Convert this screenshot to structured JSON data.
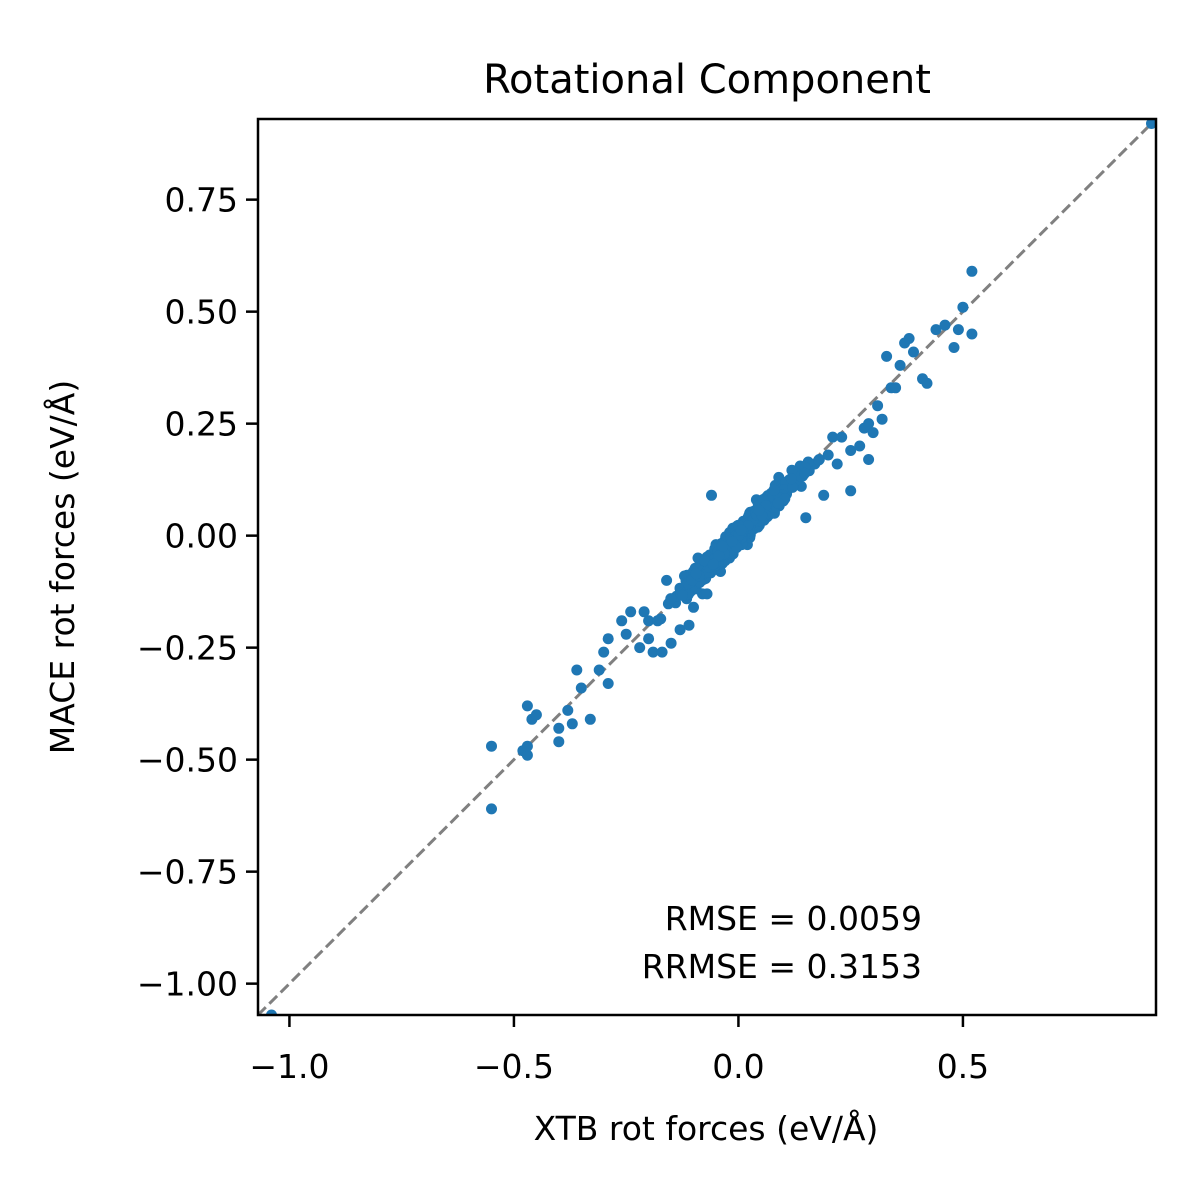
{
  "chart_data": {
    "type": "scatter",
    "title": "Rotational Component",
    "xlabel": "XTB rot forces (eV/Å)",
    "ylabel": "MACE rot forces (eV/Å)",
    "xlim": [
      -1.07,
      0.93
    ],
    "ylim": [
      -1.07,
      0.93
    ],
    "xticks": [
      -1.0,
      -0.5,
      0.0,
      0.5
    ],
    "xtick_labels": [
      "−1.0",
      "−0.5",
      "0.0",
      "0.5"
    ],
    "yticks": [
      -1.0,
      -0.75,
      -0.5,
      -0.25,
      0.0,
      0.25,
      0.5,
      0.75
    ],
    "ytick_labels": [
      "−1.00",
      "−0.75",
      "−0.50",
      "−0.25",
      "0.00",
      "0.25",
      "0.50",
      "0.75"
    ],
    "grid": false,
    "reference_line": {
      "style": "dashed",
      "color": "#808080",
      "from": [
        -1.07,
        -1.07
      ],
      "to": [
        0.93,
        0.93
      ]
    },
    "annotations": [
      "RMSE = 0.0059",
      "RRMSE = 0.3153"
    ],
    "colors": {
      "points": "#1f77b4",
      "reference_line": "#808080"
    },
    "series": [
      {
        "points": [
          [
            -1.04,
            -1.07
          ],
          [
            0.92,
            0.92
          ],
          [
            -0.55,
            -0.47
          ],
          [
            -0.55,
            -0.61
          ],
          [
            -0.47,
            -0.38
          ],
          [
            -0.46,
            -0.41
          ],
          [
            -0.45,
            -0.4
          ],
          [
            -0.48,
            -0.48
          ],
          [
            -0.47,
            -0.49
          ],
          [
            -0.47,
            -0.47
          ],
          [
            -0.4,
            -0.43
          ],
          [
            -0.4,
            -0.46
          ],
          [
            -0.38,
            -0.39
          ],
          [
            -0.37,
            -0.42
          ],
          [
            -0.33,
            -0.41
          ],
          [
            -0.36,
            -0.3
          ],
          [
            -0.35,
            -0.34
          ],
          [
            -0.31,
            -0.3
          ],
          [
            -0.29,
            -0.33
          ],
          [
            -0.3,
            -0.26
          ],
          [
            -0.29,
            -0.23
          ],
          [
            -0.26,
            -0.19
          ],
          [
            -0.25,
            -0.22
          ],
          [
            -0.24,
            -0.17
          ],
          [
            -0.21,
            -0.17
          ],
          [
            -0.2,
            -0.19
          ],
          [
            -0.19,
            -0.26
          ],
          [
            -0.18,
            -0.19
          ],
          [
            -0.17,
            -0.26
          ],
          [
            -0.22,
            -0.25
          ],
          [
            -0.2,
            -0.23
          ],
          [
            -0.16,
            -0.1
          ],
          [
            -0.15,
            -0.24
          ],
          [
            -0.14,
            -0.15
          ],
          [
            -0.13,
            -0.21
          ],
          [
            -0.12,
            -0.09
          ],
          [
            -0.11,
            -0.2
          ],
          [
            -0.1,
            -0.16
          ],
          [
            -0.09,
            -0.05
          ],
          [
            -0.08,
            -0.13
          ],
          [
            -0.07,
            -0.13
          ],
          [
            -0.06,
            0.09
          ],
          [
            -0.05,
            -0.02
          ],
          [
            -0.04,
            -0.08
          ],
          [
            -0.02,
            -0.05
          ],
          [
            0.0,
            0.02
          ],
          [
            0.02,
            -0.02
          ],
          [
            0.04,
            0.08
          ],
          [
            0.06,
            0.05
          ],
          [
            0.08,
            0.05
          ],
          [
            0.09,
            0.13
          ],
          [
            0.1,
            0.11
          ],
          [
            0.12,
            0.13
          ],
          [
            0.14,
            0.11
          ],
          [
            0.15,
            0.04
          ],
          [
            0.17,
            0.16
          ],
          [
            0.18,
            0.17
          ],
          [
            0.19,
            0.09
          ],
          [
            0.2,
            0.18
          ],
          [
            0.21,
            0.22
          ],
          [
            0.22,
            0.16
          ],
          [
            0.23,
            0.22
          ],
          [
            0.25,
            0.19
          ],
          [
            0.27,
            0.2
          ],
          [
            0.28,
            0.24
          ],
          [
            0.29,
            0.25
          ],
          [
            0.3,
            0.23
          ],
          [
            0.31,
            0.29
          ],
          [
            0.32,
            0.26
          ],
          [
            0.33,
            0.4
          ],
          [
            0.34,
            0.33
          ],
          [
            0.35,
            0.33
          ],
          [
            0.36,
            0.38
          ],
          [
            0.37,
            0.43
          ],
          [
            0.38,
            0.44
          ],
          [
            0.39,
            0.41
          ],
          [
            0.41,
            0.35
          ],
          [
            0.42,
            0.34
          ],
          [
            0.44,
            0.46
          ],
          [
            0.46,
            0.47
          ],
          [
            0.48,
            0.42
          ],
          [
            0.49,
            0.46
          ],
          [
            0.5,
            0.51
          ],
          [
            0.52,
            0.45
          ],
          [
            0.52,
            0.59
          ],
          [
            0.25,
            0.1
          ],
          [
            0.29,
            0.17
          ]
        ]
      }
    ]
  }
}
